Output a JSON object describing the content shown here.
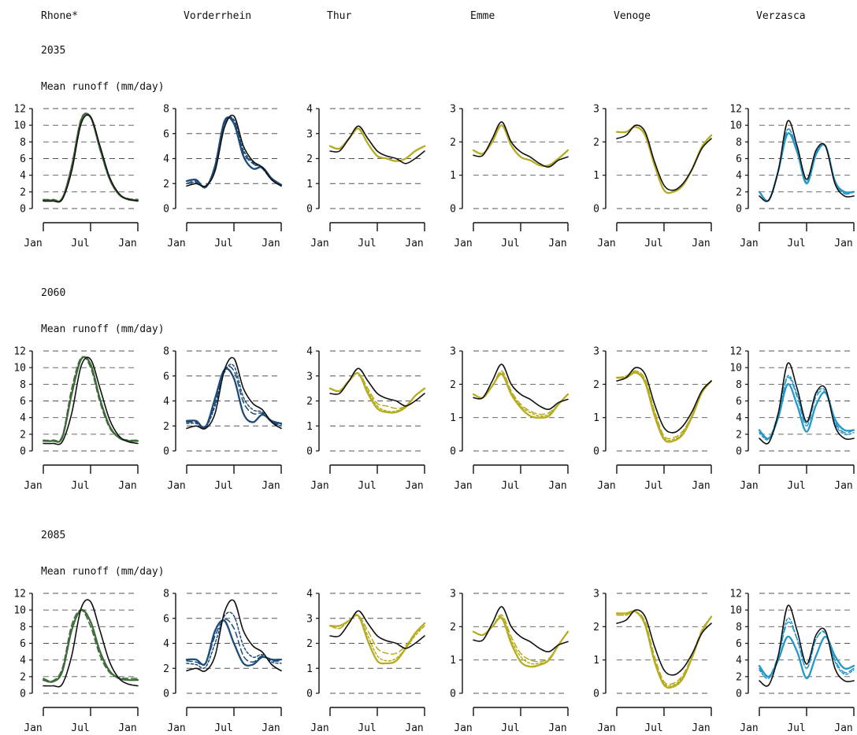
{
  "rivers": [
    "Rhone*",
    "Vorderrhein",
    "Thur",
    "Emme",
    "Venoge",
    "Verzasca"
  ],
  "years": [
    "2035",
    "2060",
    "2085"
  ],
  "ylabel": "Mean runoff (mm/day)",
  "xtick_labels": [
    "Jan",
    "Jul",
    "Jan"
  ],
  "colors": {
    "observed": "#111111",
    "grid": "#555555",
    "Rhone*": "#3f6b3a",
    "Vorderrhein": "#1d4b7a",
    "Thur": "#b5ac1e",
    "Emme": "#b5ac1e",
    "Venoge": "#b5ac1e",
    "Verzasca": "#2597c9"
  },
  "chart_data": {
    "type": "line",
    "x_description": "Jan to Jan (annual cycle)",
    "x": [
      0,
      0.1,
      0.2,
      0.3,
      0.4,
      0.5,
      0.6,
      0.7,
      0.8,
      0.9,
      1.0
    ],
    "panels": {
      "Rhone*": {
        "yticks": [
          0,
          2,
          4,
          6,
          8,
          10,
          12
        ],
        "ylim": [
          0,
          12
        ],
        "observed": [
          0.9,
          0.9,
          1.1,
          4.5,
          10.2,
          11.0,
          7.5,
          3.8,
          1.8,
          1.1,
          0.9
        ],
        "2035": {
          "dashed": [
            1.1,
            1.1,
            1.3,
            5.2,
            10.8,
            10.9,
            7.0,
            3.5,
            1.7,
            1.2,
            1.1
          ],
          "dotted": [
            1.0,
            1.0,
            1.2,
            5.0,
            10.6,
            11.0,
            7.2,
            3.6,
            1.7,
            1.1,
            1.0
          ],
          "solid": [
            1.0,
            1.0,
            1.2,
            5.0,
            10.6,
            11.0,
            7.2,
            3.6,
            1.7,
            1.1,
            1.0
          ]
        },
        "2060": {
          "dashed": [
            1.3,
            1.3,
            1.8,
            7.5,
            11.2,
            10.0,
            5.8,
            2.8,
            1.6,
            1.3,
            1.3
          ],
          "dotted": [
            1.2,
            1.2,
            1.6,
            6.8,
            11.0,
            10.4,
            6.2,
            3.0,
            1.6,
            1.2,
            1.2
          ],
          "solid": [
            1.2,
            1.2,
            1.6,
            6.8,
            11.0,
            10.4,
            6.2,
            3.0,
            1.6,
            1.2,
            1.2
          ]
        },
        "2085": {
          "dashed": [
            1.8,
            1.5,
            3.0,
            8.2,
            10.0,
            8.0,
            4.5,
            2.5,
            1.9,
            1.8,
            1.8
          ],
          "dotted": [
            1.6,
            1.4,
            2.6,
            7.6,
            10.0,
            8.6,
            5.0,
            2.7,
            1.8,
            1.6,
            1.6
          ],
          "solid": [
            1.6,
            1.4,
            2.6,
            7.6,
            10.0,
            8.6,
            5.0,
            2.7,
            1.8,
            1.6,
            1.6
          ]
        }
      },
      "Vorderrhein": {
        "yticks": [
          0,
          2,
          4,
          6,
          8
        ],
        "ylim": [
          0,
          8
        ],
        "observed": [
          1.8,
          2.0,
          1.8,
          3.0,
          6.5,
          7.4,
          5.0,
          3.8,
          3.3,
          2.3,
          1.8
        ],
        "2035": {
          "dashed": [
            2.0,
            2.2,
            1.8,
            3.2,
            6.8,
            7.0,
            4.5,
            3.6,
            3.2,
            2.3,
            1.9
          ],
          "dotted": [
            2.0,
            2.1,
            1.8,
            3.2,
            6.8,
            7.1,
            4.7,
            3.7,
            3.2,
            2.3,
            1.9
          ],
          "solid": [
            2.2,
            2.3,
            1.7,
            3.4,
            7.0,
            6.8,
            4.2,
            3.2,
            3.3,
            2.4,
            1.9
          ]
        },
        "2060": {
          "dashed": [
            2.3,
            2.3,
            2.0,
            3.8,
            6.5,
            6.4,
            3.9,
            3.0,
            3.0,
            2.3,
            2.1
          ],
          "dotted": [
            2.2,
            2.2,
            1.9,
            3.6,
            6.3,
            6.8,
            4.3,
            3.3,
            3.1,
            2.3,
            2.0
          ],
          "solid": [
            2.4,
            2.4,
            1.9,
            4.2,
            6.5,
            5.8,
            3.0,
            2.3,
            2.9,
            2.4,
            2.2
          ]
        },
        "2085": {
          "dashed": [
            2.6,
            2.5,
            2.4,
            4.6,
            5.9,
            5.2,
            3.0,
            2.5,
            3.0,
            2.6,
            2.6
          ],
          "dotted": [
            2.4,
            2.3,
            2.1,
            4.0,
            6.2,
            6.2,
            3.8,
            2.9,
            3.1,
            2.5,
            2.4
          ],
          "solid": [
            2.7,
            2.7,
            2.4,
            5.0,
            5.8,
            4.0,
            2.4,
            2.3,
            2.9,
            2.7,
            2.7
          ]
        }
      },
      "Thur": {
        "yticks": [
          0,
          1,
          2,
          3,
          4
        ],
        "ylim": [
          0,
          4
        ],
        "observed": [
          2.3,
          2.3,
          2.8,
          3.3,
          2.8,
          2.3,
          2.1,
          2.0,
          1.8,
          2.0,
          2.3
        ],
        "2035": {
          "dashed": [
            2.5,
            2.4,
            2.8,
            3.2,
            2.6,
            2.1,
            2.0,
            1.9,
            2.0,
            2.3,
            2.5
          ],
          "dotted": [
            2.5,
            2.4,
            2.8,
            3.2,
            2.6,
            2.1,
            2.0,
            1.9,
            2.0,
            2.3,
            2.5
          ],
          "solid": [
            2.5,
            2.4,
            2.8,
            3.2,
            2.6,
            2.1,
            2.0,
            1.9,
            2.0,
            2.3,
            2.5
          ]
        },
        "2060": {
          "dashed": [
            2.5,
            2.4,
            2.8,
            3.1,
            2.5,
            1.9,
            1.8,
            1.7,
            1.8,
            2.2,
            2.5
          ],
          "dotted": [
            2.5,
            2.4,
            2.8,
            3.1,
            2.4,
            1.8,
            1.6,
            1.6,
            1.8,
            2.2,
            2.5
          ],
          "solid": [
            2.5,
            2.4,
            2.8,
            3.1,
            2.3,
            1.7,
            1.55,
            1.55,
            1.75,
            2.2,
            2.5
          ]
        },
        "2085": {
          "dashed": [
            2.7,
            2.6,
            2.9,
            3.1,
            2.5,
            1.8,
            1.6,
            1.6,
            1.9,
            2.4,
            2.7
          ],
          "dotted": [
            2.7,
            2.6,
            2.9,
            3.1,
            2.3,
            1.5,
            1.3,
            1.4,
            1.8,
            2.3,
            2.7
          ],
          "solid": [
            2.7,
            2.7,
            2.9,
            3.1,
            2.1,
            1.3,
            1.2,
            1.3,
            1.8,
            2.4,
            2.8
          ]
        }
      },
      "Emme": {
        "yticks": [
          0,
          1,
          2,
          3
        ],
        "ylim": [
          0,
          3
        ],
        "observed": [
          1.6,
          1.6,
          2.1,
          2.6,
          2.0,
          1.7,
          1.55,
          1.35,
          1.25,
          1.45,
          1.55
        ],
        "2035": {
          "dashed": [
            1.75,
            1.65,
            2.0,
            2.5,
            1.9,
            1.55,
            1.45,
            1.3,
            1.3,
            1.5,
            1.75
          ],
          "dotted": [
            1.75,
            1.65,
            2.0,
            2.5,
            1.9,
            1.55,
            1.45,
            1.3,
            1.3,
            1.5,
            1.75
          ],
          "solid": [
            1.75,
            1.65,
            2.0,
            2.5,
            1.9,
            1.55,
            1.45,
            1.3,
            1.3,
            1.5,
            1.75
          ]
        },
        "2060": {
          "dashed": [
            1.7,
            1.6,
            1.95,
            2.4,
            1.8,
            1.4,
            1.2,
            1.1,
            1.15,
            1.4,
            1.7
          ],
          "dotted": [
            1.7,
            1.6,
            1.95,
            2.35,
            1.75,
            1.35,
            1.15,
            1.05,
            1.1,
            1.4,
            1.7
          ],
          "solid": [
            1.7,
            1.6,
            1.95,
            2.3,
            1.7,
            1.3,
            1.05,
            1.0,
            1.05,
            1.4,
            1.7
          ]
        },
        "2085": {
          "dashed": [
            1.85,
            1.75,
            2.0,
            2.35,
            1.7,
            1.2,
            1.0,
            0.95,
            1.05,
            1.45,
            1.85
          ],
          "dotted": [
            1.85,
            1.75,
            2.0,
            2.3,
            1.6,
            1.1,
            0.9,
            0.9,
            1.0,
            1.45,
            1.85
          ],
          "solid": [
            1.85,
            1.75,
            2.0,
            2.25,
            1.5,
            0.95,
            0.8,
            0.85,
            1.0,
            1.45,
            1.85
          ]
        }
      },
      "Venoge": {
        "yticks": [
          0,
          1,
          2,
          3
        ],
        "ylim": [
          0,
          3
        ],
        "observed": [
          2.1,
          2.2,
          2.5,
          2.3,
          1.4,
          0.7,
          0.55,
          0.75,
          1.2,
          1.8,
          2.1
        ],
        "2035": {
          "dashed": [
            2.3,
            2.3,
            2.45,
            2.2,
            1.3,
            0.55,
            0.5,
            0.7,
            1.2,
            1.85,
            2.2
          ],
          "dotted": [
            2.3,
            2.3,
            2.45,
            2.2,
            1.3,
            0.55,
            0.5,
            0.7,
            1.2,
            1.85,
            2.2
          ],
          "solid": [
            2.3,
            2.3,
            2.45,
            2.2,
            1.3,
            0.55,
            0.5,
            0.7,
            1.2,
            1.85,
            2.2
          ]
        },
        "2060": {
          "dashed": [
            2.2,
            2.25,
            2.4,
            2.15,
            1.2,
            0.45,
            0.4,
            0.6,
            1.1,
            1.8,
            2.1
          ],
          "dotted": [
            2.2,
            2.25,
            2.4,
            2.1,
            1.15,
            0.4,
            0.35,
            0.55,
            1.1,
            1.8,
            2.1
          ],
          "solid": [
            2.2,
            2.2,
            2.35,
            2.05,
            1.05,
            0.35,
            0.3,
            0.5,
            1.05,
            1.75,
            2.1
          ]
        },
        "2085": {
          "dashed": [
            2.35,
            2.35,
            2.45,
            2.15,
            1.1,
            0.35,
            0.3,
            0.55,
            1.15,
            1.9,
            2.3
          ],
          "dotted": [
            2.35,
            2.35,
            2.45,
            2.1,
            1.0,
            0.3,
            0.25,
            0.5,
            1.1,
            1.85,
            2.3
          ],
          "solid": [
            2.4,
            2.4,
            2.45,
            2.05,
            0.95,
            0.25,
            0.2,
            0.45,
            1.1,
            1.85,
            2.3
          ]
        }
      },
      "Verzasca": {
        "yticks": [
          0,
          2,
          4,
          6,
          8,
          10,
          12
        ],
        "ylim": [
          0,
          12
        ],
        "observed": [
          1.5,
          1.0,
          4.5,
          10.5,
          7.5,
          3.5,
          7.0,
          7.5,
          3.0,
          1.5,
          1.5
        ],
        "2035": {
          "dashed": [
            2.0,
            1.0,
            4.5,
            9.5,
            7.0,
            3.2,
            6.8,
            7.5,
            3.2,
            1.8,
            2.0
          ],
          "dotted": [
            2.0,
            1.0,
            4.5,
            9.5,
            7.0,
            3.2,
            6.8,
            7.5,
            3.2,
            1.8,
            2.0
          ],
          "solid": [
            2.0,
            1.0,
            4.5,
            9.0,
            6.8,
            3.0,
            6.5,
            7.5,
            3.3,
            2.0,
            2.0
          ]
        },
        "2060": {
          "dashed": [
            2.5,
            1.5,
            4.5,
            8.8,
            6.5,
            3.0,
            6.5,
            7.0,
            3.5,
            2.2,
            2.5
          ],
          "dotted": [
            2.2,
            1.4,
            4.5,
            9.0,
            6.8,
            3.3,
            6.8,
            7.2,
            3.3,
            2.0,
            2.2
          ],
          "solid": [
            2.5,
            1.5,
            4.0,
            8.0,
            5.5,
            2.3,
            5.5,
            7.0,
            3.8,
            2.5,
            2.5
          ]
        },
        "2085": {
          "dashed": [
            3.0,
            2.0,
            4.5,
            8.5,
            6.5,
            3.0,
            6.5,
            7.2,
            4.0,
            2.5,
            3.0
          ],
          "dotted": [
            2.8,
            1.8,
            4.5,
            9.0,
            6.5,
            3.0,
            6.5,
            7.3,
            3.8,
            2.3,
            2.8
          ],
          "solid": [
            3.3,
            2.0,
            4.0,
            6.8,
            5.0,
            1.8,
            4.5,
            6.8,
            4.5,
            3.0,
            3.3
          ]
        }
      }
    }
  }
}
